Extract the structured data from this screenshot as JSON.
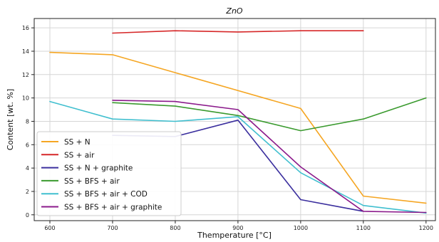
{
  "chart_data": {
    "type": "line",
    "title": "ZnO",
    "xlabel": "Themperature [°C]",
    "ylabel": "Content [wt. %]",
    "xlim": [
      575,
      1215
    ],
    "ylim": [
      -0.5,
      16.8
    ],
    "xticks": [
      600,
      700,
      800,
      900,
      1000,
      1100,
      1200
    ],
    "yticks": [
      0,
      2,
      4,
      6,
      8,
      10,
      12,
      14,
      16
    ],
    "grid": true,
    "legend_position": "lower-left",
    "series": [
      {
        "name": "SS + N",
        "color": "#f5a623",
        "x": [
          600,
          700,
          1000,
          1100,
          1200
        ],
        "y": [
          13.9,
          13.7,
          9.1,
          1.6,
          1.0
        ]
      },
      {
        "name": "SS + air",
        "color": "#d62728",
        "x": [
          700,
          800,
          900,
          1000,
          1100
        ],
        "y": [
          15.55,
          15.75,
          15.65,
          15.75,
          15.75
        ]
      },
      {
        "name": "SS + N + graphite",
        "color": "#3b2f9e",
        "x": [
          700,
          800,
          900,
          1000,
          1100
        ],
        "y": [
          6.8,
          6.7,
          8.1,
          1.3,
          0.3
        ]
      },
      {
        "name": "SS + BFS + air",
        "color": "#3a9a2e",
        "x": [
          700,
          800,
          900,
          1000,
          1100,
          1200
        ],
        "y": [
          9.6,
          9.3,
          8.5,
          7.2,
          8.2,
          10.0
        ]
      },
      {
        "name": "SS + BFS + air + COD",
        "color": "#40bfcf",
        "x": [
          600,
          700,
          800,
          900,
          1000,
          1100,
          1200
        ],
        "y": [
          9.7,
          8.2,
          8.0,
          8.4,
          3.6,
          0.8,
          0.15
        ]
      },
      {
        "name": "SS + BFS + air + graphite",
        "color": "#8b1a8b",
        "x": [
          700,
          800,
          900,
          1000,
          1100,
          1200
        ],
        "y": [
          9.8,
          9.7,
          9.0,
          4.1,
          0.3,
          0.2
        ]
      }
    ]
  }
}
